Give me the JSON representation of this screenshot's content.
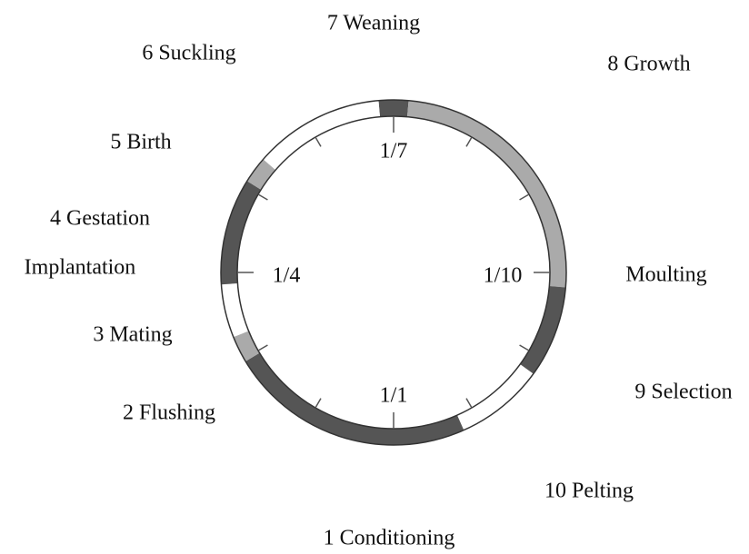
{
  "stages": [
    "7 Weaning",
    "6 Suckling",
    "8 Growth",
    "5 Birth",
    "4 Gestation",
    "Implantation",
    "Moulting",
    "3 Mating",
    "9 Selection",
    "2 Flushing",
    "10 Pelting",
    "1 Conditioning"
  ],
  "dates": [
    "1/1",
    "1/4",
    "1/7",
    "1/10"
  ]
}
